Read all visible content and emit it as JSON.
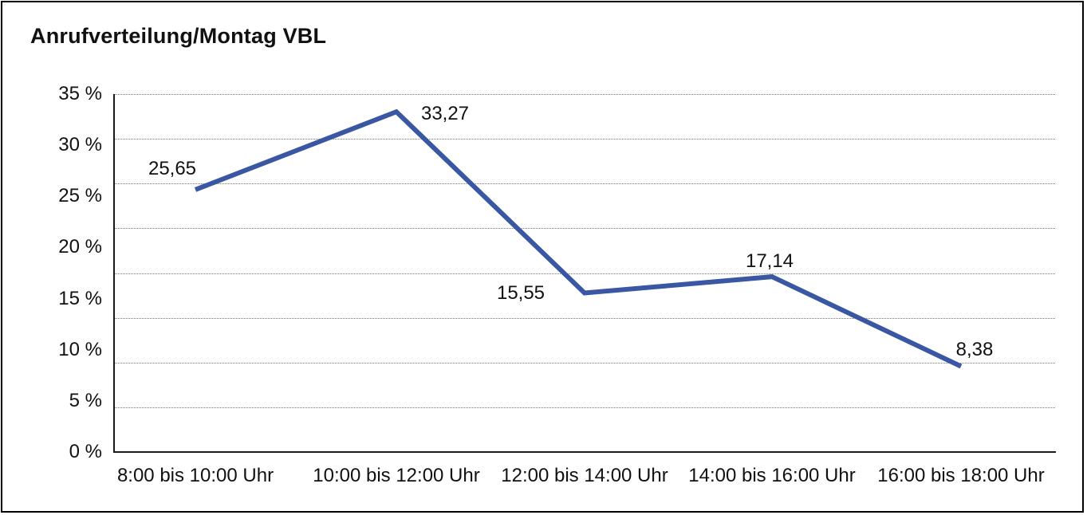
{
  "title": "Anrufverteilung/Montag VBL",
  "chart_data": {
    "type": "line",
    "title": "Anrufverteilung/Montag VBL",
    "categories": [
      "8:00 bis 10:00 Uhr",
      "10:00 bis 12:00 Uhr",
      "12:00 bis 14:00 Uhr",
      "14:00 bis 16:00 Uhr",
      "16:00 bis 18:00 Uhr"
    ],
    "values": [
      25.65,
      33.27,
      15.55,
      17.14,
      8.38
    ],
    "data_labels": [
      "25,65",
      "33,27",
      "15,55",
      "17,14",
      "8,38"
    ],
    "xlabel": "",
    "ylabel": "",
    "ylim": [
      0,
      35
    ],
    "ytick_step": 5,
    "ytick_labels": [
      "0 %",
      "5 %",
      "10 %",
      "15 %",
      "20 %",
      "25 %",
      "30 %",
      "35 %"
    ],
    "grid": "horizontal-dotted",
    "legend": "none",
    "line_color": "#3A57A3",
    "axis_color": "#1A1A1A",
    "grid_color": "#777777",
    "text_color": "#111111",
    "background": "#FFFFFF"
  }
}
